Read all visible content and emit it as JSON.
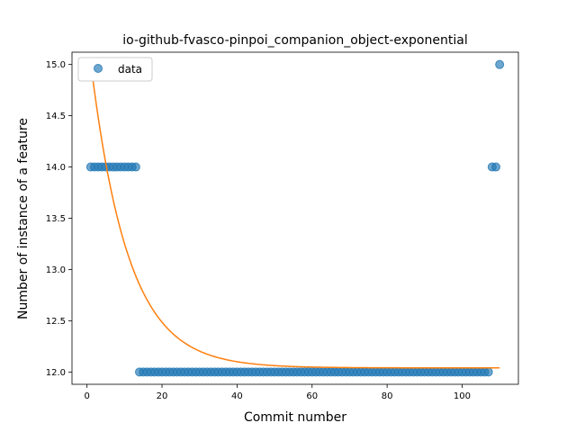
{
  "chart_data": {
    "type": "scatter",
    "title": "io-github-fvasco-pinpoi_companion_object-exponential",
    "xlabel": "Commit number",
    "ylabel": "Number of instance of a feature",
    "xlim": [
      -4,
      115
    ],
    "ylim": [
      11.88,
      15.12
    ],
    "xticks": [
      0,
      20,
      40,
      60,
      80,
      100
    ],
    "yticks": [
      12.0,
      12.5,
      13.0,
      13.5,
      14.0,
      14.5,
      15.0
    ],
    "ytick_labels": [
      "12.0",
      "12.5",
      "13.0",
      "13.5",
      "14.0",
      "14.5",
      "15.0"
    ],
    "legend": {
      "placement": "top-left",
      "entries": [
        "data"
      ]
    },
    "colors": {
      "points": "#1f77b4",
      "fit": "#ff7f0e"
    },
    "series": [
      {
        "name": "data",
        "kind": "scatter",
        "segments": [
          {
            "x_from": 1,
            "x_to": 13,
            "y": 14
          },
          {
            "x_from": 14,
            "x_to": 107,
            "y": 12
          },
          {
            "x_from": 108,
            "x_to": 109,
            "y": 14
          },
          {
            "x_from": 110,
            "x_to": 110,
            "y": 15
          }
        ]
      },
      {
        "kind": "line",
        "model": "exponential",
        "params": {
          "a": 2.98,
          "b": 0.1,
          "c": 12.04
        },
        "x_range": [
          1,
          110
        ]
      }
    ]
  }
}
